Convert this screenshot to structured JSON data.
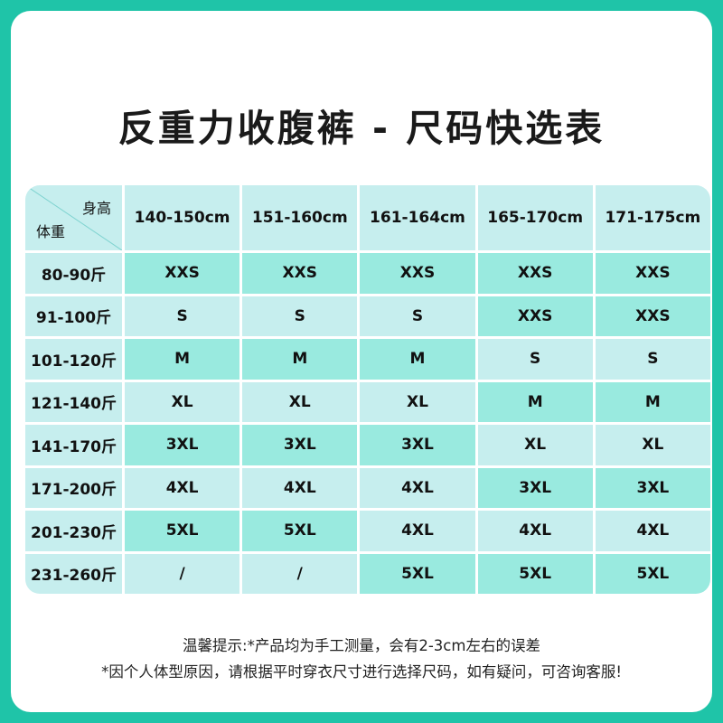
{
  "title": "反重力收腹裤 - 尺码快选表",
  "table": {
    "corner_height_label": "身高",
    "corner_weight_label": "体重",
    "columns": [
      "140-150cm",
      "151-160cm",
      "161-164cm",
      "165-170cm",
      "171-175cm"
    ],
    "rows": [
      {
        "label": "80-90斤",
        "cells": [
          "XXS",
          "XXS",
          "XXS",
          "XXS",
          "XXS"
        ],
        "shade": [
          "dark",
          "dark",
          "dark",
          "dark",
          "dark"
        ]
      },
      {
        "label": "91-100斤",
        "cells": [
          "S",
          "S",
          "S",
          "XXS",
          "XXS"
        ],
        "shade": [
          "light",
          "light",
          "light",
          "dark",
          "dark"
        ]
      },
      {
        "label": "101-120斤",
        "cells": [
          "M",
          "M",
          "M",
          "S",
          "S"
        ],
        "shade": [
          "dark",
          "dark",
          "dark",
          "light",
          "light"
        ]
      },
      {
        "label": "121-140斤",
        "cells": [
          "XL",
          "XL",
          "XL",
          "M",
          "M"
        ],
        "shade": [
          "light",
          "light",
          "light",
          "dark",
          "dark"
        ]
      },
      {
        "label": "141-170斤",
        "cells": [
          "3XL",
          "3XL",
          "3XL",
          "XL",
          "XL"
        ],
        "shade": [
          "dark",
          "dark",
          "dark",
          "light",
          "light"
        ]
      },
      {
        "label": "171-200斤",
        "cells": [
          "4XL",
          "4XL",
          "4XL",
          "3XL",
          "3XL"
        ],
        "shade": [
          "light",
          "light",
          "light",
          "dark",
          "dark"
        ]
      },
      {
        "label": "201-230斤",
        "cells": [
          "5XL",
          "5XL",
          "4XL",
          "4XL",
          "4XL"
        ],
        "shade": [
          "dark",
          "dark",
          "light",
          "light",
          "light"
        ]
      },
      {
        "label": "231-260斤",
        "cells": [
          "/",
          "/",
          "5XL",
          "5XL",
          "5XL"
        ],
        "shade": [
          "light",
          "light",
          "dark",
          "dark",
          "dark"
        ]
      }
    ]
  },
  "notes": {
    "line1": "温馨提示:*产品均为手工测量，会有2-3cm左右的误差",
    "line2": "*因个人体型原因，请根据平时穿衣尺寸进行选择尺码，如有疑问，可咨询客服!"
  },
  "colors": {
    "frame": "#1fc4a8",
    "cell_dark": "#99eadf",
    "cell_light": "#c6eeee"
  }
}
